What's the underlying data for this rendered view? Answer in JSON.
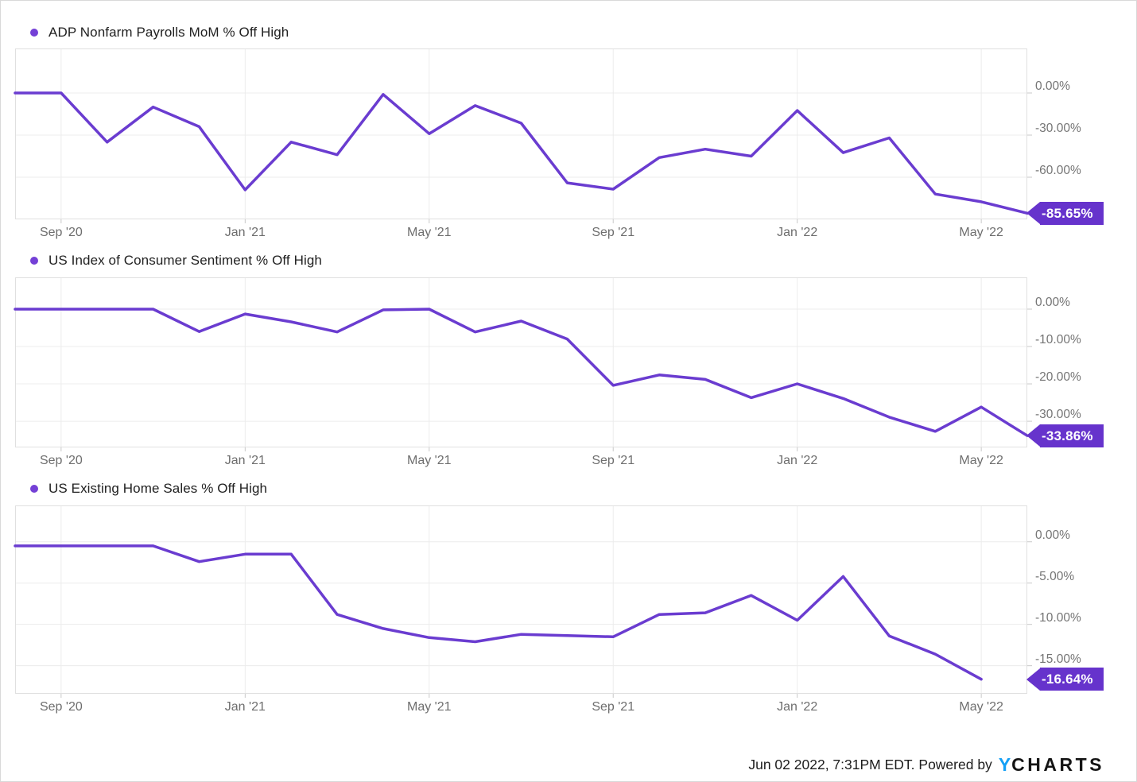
{
  "x_axis": {
    "labels": [
      "Sep '20",
      "Jan '21",
      "May '21",
      "Sep '21",
      "Jan '22",
      "May '22"
    ],
    "tick_indices": [
      1,
      5,
      9,
      13,
      17,
      21
    ],
    "points_total": 23
  },
  "chart_data": [
    {
      "type": "line",
      "title": "ADP Nonfarm Payrolls MoM % Off High",
      "legend_position": "top-left",
      "grid": true,
      "y_axis_side": "right",
      "y_ticks": [
        {
          "label": "0.00%",
          "value": 0
        },
        {
          "label": "-30.00%",
          "value": -30
        },
        {
          "label": "-60.00%",
          "value": -60
        }
      ],
      "ylim": [
        31.7,
        -90
      ],
      "x": [
        "Jul '20",
        "Aug '20",
        "Sep '20",
        "Oct '20",
        "Nov '20",
        "Dec '20",
        "Jan '21",
        "Feb '21",
        "Mar '21",
        "Apr '21",
        "May '21",
        "Jun '21",
        "Jul '21",
        "Aug '21",
        "Sep '21",
        "Oct '21",
        "Nov '21",
        "Dec '21",
        "Jan '22",
        "Feb '22",
        "Mar '22",
        "Apr '22",
        "May '22"
      ],
      "values": [
        0,
        0,
        -35,
        -10,
        -24,
        -69,
        -35,
        -44,
        -1,
        -29,
        -9,
        -21.5,
        -64,
        -68.5,
        -46,
        -40,
        -45,
        -12.5,
        -42.5,
        -32,
        -72,
        -77.5,
        -85.65
      ],
      "end_label": "-85.65%",
      "end_value": -85.65
    },
    {
      "type": "line",
      "title": "US Index of Consumer Sentiment % Off High",
      "legend_position": "top-left",
      "grid": true,
      "y_axis_side": "right",
      "y_ticks": [
        {
          "label": "0.00%",
          "value": 0
        },
        {
          "label": "-10.00%",
          "value": -10
        },
        {
          "label": "-20.00%",
          "value": -20
        },
        {
          "label": "-30.00%",
          "value": -30
        }
      ],
      "ylim": [
        8.5,
        -37
      ],
      "x": [
        "Jul '20",
        "Aug '20",
        "Sep '20",
        "Oct '20",
        "Nov '20",
        "Dec '20",
        "Jan '21",
        "Feb '21",
        "Mar '21",
        "Apr '21",
        "May '21",
        "Jun '21",
        "Jul '21",
        "Aug '21",
        "Sep '21",
        "Oct '21",
        "Nov '21",
        "Dec '21",
        "Jan '22",
        "Feb '22",
        "Mar '22",
        "Apr '22",
        "May '22"
      ],
      "values": [
        0,
        0,
        0,
        0,
        -6.0,
        -1.3,
        -3.4,
        -6.1,
        -0.2,
        0,
        -6.1,
        -3.2,
        -8.0,
        -20.4,
        -17.6,
        -18.8,
        -23.7,
        -20.0,
        -23.9,
        -28.9,
        -32.7,
        -26.2,
        -33.86
      ],
      "end_label": "-33.86%",
      "end_value": -33.86
    },
    {
      "type": "line",
      "title": "US Existing Home Sales % Off High",
      "legend_position": "top-left",
      "grid": true,
      "y_axis_side": "right",
      "y_ticks": [
        {
          "label": "0.00%",
          "value": 0
        },
        {
          "label": "-5.00%",
          "value": -5
        },
        {
          "label": "-10.00%",
          "value": -10
        },
        {
          "label": "-15.00%",
          "value": -15
        }
      ],
      "ylim": [
        4.4,
        -18.4
      ],
      "x": [
        "Jul '20",
        "Aug '20",
        "Sep '20",
        "Oct '20",
        "Nov '20",
        "Dec '20",
        "Jan '21",
        "Feb '21",
        "Mar '21",
        "Apr '21",
        "May '21",
        "Jun '21",
        "Jul '21",
        "Aug '21",
        "Sep '21",
        "Oct '21",
        "Nov '21",
        "Dec '21",
        "Jan '22",
        "Feb '22",
        "Mar '22",
        "Apr '22"
      ],
      "values": [
        -0.5,
        -0.5,
        -0.5,
        -0.5,
        -2.4,
        -1.5,
        -1.5,
        -8.8,
        -10.5,
        -11.6,
        -12.1,
        -11.2,
        -11.35,
        -11.5,
        -8.8,
        -8.6,
        -6.5,
        -9.5,
        -4.2,
        -11.4,
        -13.6,
        -16.64
      ],
      "end_label": "-16.64%",
      "end_value": -16.64
    }
  ],
  "footer": {
    "timestamp": "Jun 02 2022, 7:31PM EDT.",
    "powered_by": "Powered by",
    "logo_y": "Y",
    "logo_rest": "CHARTS"
  },
  "colors": {
    "line": "#6a3cd0",
    "legend_dot": "#7440d6",
    "badge": "#6633cc",
    "grid": "#ececec",
    "plot_border": "#e0e0e0",
    "tick": "#c9c9c9",
    "axis_text": "#757575",
    "logo_blue": "#14a0f6"
  }
}
